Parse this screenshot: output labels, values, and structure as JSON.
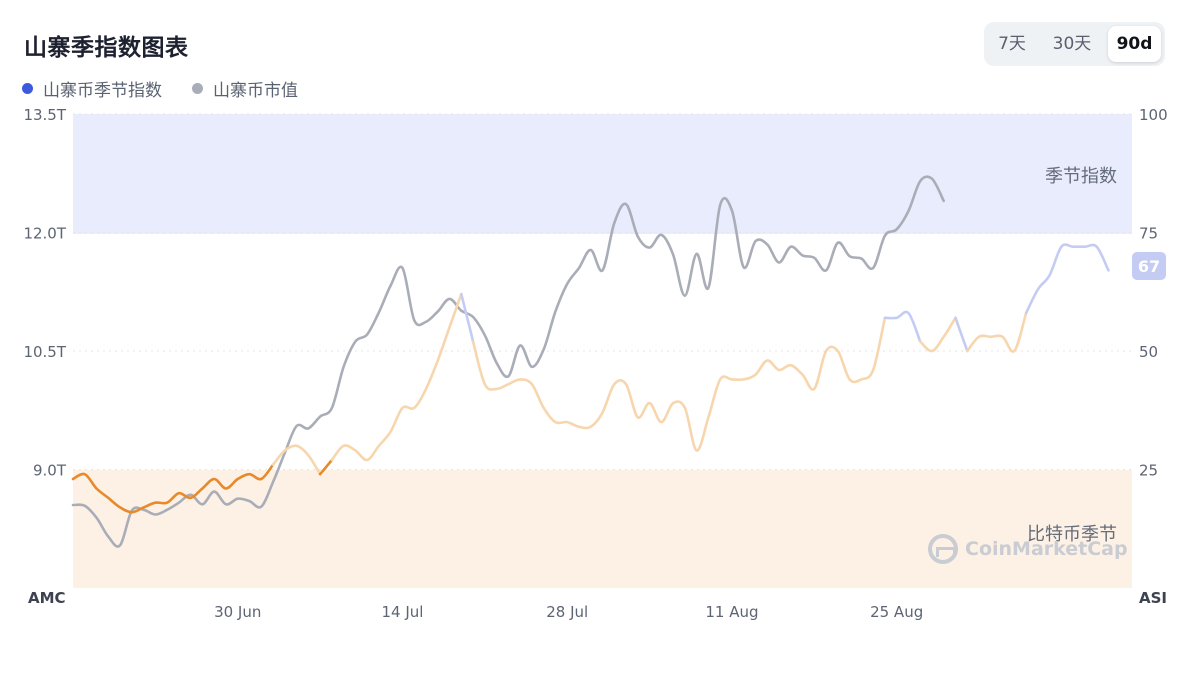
{
  "header": {
    "title": "山寨季指数图表",
    "ranges": [
      "7天",
      "30天",
      "90d"
    ],
    "active_range": "90d"
  },
  "legend": [
    {
      "label": "山寨币季节指数",
      "color": "#3b5bdb"
    },
    {
      "label": "山寨币市值",
      "color": "#a9adb7"
    }
  ],
  "zones": {
    "altcoin_season_label": "季节指数",
    "bitcoin_season_label": "比特币季节",
    "altcoin_color": "#e8ecfc",
    "bitcoin_color": "#fdf1e5"
  },
  "watermark": "CoinMarketCap",
  "chart_data": {
    "type": "line",
    "x_ticks": [
      "30 Jun",
      "14 Jul",
      "28 Jul",
      "11 Aug",
      "25 Aug"
    ],
    "x_tick_days": [
      14,
      28,
      42,
      56,
      70
    ],
    "x_days_total": 90,
    "left_axis": {
      "label": "AMC",
      "ticks": [
        "13.5T",
        "12.0T",
        "10.5T",
        "9.0T"
      ],
      "tick_values": [
        13.5,
        12.0,
        10.5,
        9.0
      ],
      "range": [
        7.5,
        13.5
      ]
    },
    "right_axis": {
      "label": "ASI",
      "ticks": [
        "100",
        "75",
        "50",
        "25"
      ],
      "tick_values": [
        100,
        75,
        50,
        25
      ],
      "range": [
        0,
        100
      ]
    },
    "current_index": "67",
    "series": [
      {
        "name": "山寨币季节指数",
        "axis": "right",
        "colors": {
          "bitcoin": "#e8892b",
          "neutral": "#f7d6ae",
          "altcoin": "#c4ccf4"
        },
        "points": [
          [
            0,
            23
          ],
          [
            1,
            24
          ],
          [
            2,
            21
          ],
          [
            3,
            19
          ],
          [
            4,
            17
          ],
          [
            5,
            16
          ],
          [
            6,
            17
          ],
          [
            7,
            18
          ],
          [
            8,
            18
          ],
          [
            9,
            20
          ],
          [
            10,
            19
          ],
          [
            11,
            21
          ],
          [
            12,
            23
          ],
          [
            13,
            21
          ],
          [
            14,
            23
          ],
          [
            15,
            24
          ],
          [
            16,
            23
          ],
          [
            17,
            26
          ],
          [
            18,
            29
          ],
          [
            19,
            30
          ],
          [
            20,
            28
          ],
          [
            21,
            24
          ],
          [
            22,
            27
          ],
          [
            23,
            30
          ],
          [
            24,
            29
          ],
          [
            25,
            27
          ],
          [
            26,
            30
          ],
          [
            27,
            33
          ],
          [
            28,
            38
          ],
          [
            29,
            38
          ],
          [
            30,
            42
          ],
          [
            31,
            48
          ],
          [
            32,
            55
          ],
          [
            33,
            62
          ],
          [
            34,
            52
          ],
          [
            35,
            43
          ],
          [
            36,
            42
          ],
          [
            37,
            43
          ],
          [
            38,
            44
          ],
          [
            39,
            43
          ],
          [
            40,
            38
          ],
          [
            41,
            35
          ],
          [
            42,
            35
          ],
          [
            43,
            34
          ],
          [
            44,
            34
          ],
          [
            45,
            37
          ],
          [
            46,
            43
          ],
          [
            47,
            43
          ],
          [
            48,
            36
          ],
          [
            49,
            39
          ],
          [
            50,
            35
          ],
          [
            51,
            39
          ],
          [
            52,
            38
          ],
          [
            53,
            29
          ],
          [
            54,
            36
          ],
          [
            55,
            44
          ],
          [
            56,
            44
          ],
          [
            57,
            44
          ],
          [
            58,
            45
          ],
          [
            59,
            48
          ],
          [
            60,
            46
          ],
          [
            61,
            47
          ],
          [
            62,
            45
          ],
          [
            63,
            42
          ],
          [
            64,
            50
          ],
          [
            65,
            50
          ],
          [
            66,
            44
          ],
          [
            67,
            44
          ],
          [
            68,
            46
          ],
          [
            69,
            57
          ],
          [
            70,
            57
          ],
          [
            71,
            58
          ],
          [
            72,
            52
          ],
          [
            73,
            50
          ],
          [
            74,
            53
          ],
          [
            75,
            57
          ],
          [
            76,
            50
          ],
          [
            77,
            53
          ],
          [
            78,
            53
          ],
          [
            79,
            53
          ],
          [
            80,
            50
          ],
          [
            81,
            58
          ],
          [
            82,
            63
          ],
          [
            83,
            66
          ],
          [
            84,
            72
          ],
          [
            85,
            72
          ],
          [
            86,
            72
          ],
          [
            87,
            72
          ],
          [
            88,
            67
          ]
        ]
      },
      {
        "name": "山寨币市值",
        "axis": "left",
        "color": "#a9adb7",
        "points": [
          [
            0,
            8.55
          ],
          [
            1,
            8.54
          ],
          [
            2,
            8.39
          ],
          [
            3,
            8.15
          ],
          [
            4,
            8.04
          ],
          [
            5,
            8.48
          ],
          [
            6,
            8.49
          ],
          [
            7,
            8.43
          ],
          [
            8,
            8.49
          ],
          [
            9,
            8.58
          ],
          [
            10,
            8.68
          ],
          [
            11,
            8.56
          ],
          [
            12,
            8.72
          ],
          [
            13,
            8.56
          ],
          [
            14,
            8.63
          ],
          [
            15,
            8.6
          ],
          [
            16,
            8.53
          ],
          [
            17,
            8.84
          ],
          [
            18,
            9.21
          ],
          [
            19,
            9.55
          ],
          [
            20,
            9.52
          ],
          [
            21,
            9.67
          ],
          [
            22,
            9.78
          ],
          [
            23,
            10.3
          ],
          [
            24,
            10.62
          ],
          [
            25,
            10.71
          ],
          [
            26,
            10.99
          ],
          [
            27,
            11.33
          ],
          [
            28,
            11.55
          ],
          [
            29,
            10.89
          ],
          [
            30,
            10.87
          ],
          [
            31,
            11.0
          ],
          [
            32,
            11.16
          ],
          [
            33,
            11.01
          ],
          [
            34,
            10.93
          ],
          [
            35,
            10.7
          ],
          [
            36,
            10.35
          ],
          [
            37,
            10.18
          ],
          [
            38,
            10.57
          ],
          [
            39,
            10.3
          ],
          [
            40,
            10.52
          ],
          [
            41,
            11.0
          ],
          [
            42,
            11.35
          ],
          [
            43,
            11.55
          ],
          [
            44,
            11.78
          ],
          [
            45,
            11.52
          ],
          [
            46,
            12.12
          ],
          [
            47,
            12.36
          ],
          [
            48,
            11.95
          ],
          [
            49,
            11.81
          ],
          [
            50,
            11.97
          ],
          [
            51,
            11.72
          ],
          [
            52,
            11.2
          ],
          [
            53,
            11.73
          ],
          [
            54,
            11.3
          ],
          [
            55,
            12.35
          ],
          [
            56,
            12.28
          ],
          [
            57,
            11.56
          ],
          [
            58,
            11.89
          ],
          [
            59,
            11.85
          ],
          [
            60,
            11.62
          ],
          [
            61,
            11.82
          ],
          [
            62,
            11.71
          ],
          [
            63,
            11.68
          ],
          [
            64,
            11.52
          ],
          [
            65,
            11.87
          ],
          [
            66,
            11.7
          ],
          [
            67,
            11.67
          ],
          [
            68,
            11.55
          ],
          [
            69,
            11.96
          ],
          [
            70,
            12.04
          ],
          [
            71,
            12.27
          ],
          [
            72,
            12.65
          ],
          [
            73,
            12.68
          ],
          [
            74,
            12.4
          ]
        ]
      }
    ]
  }
}
